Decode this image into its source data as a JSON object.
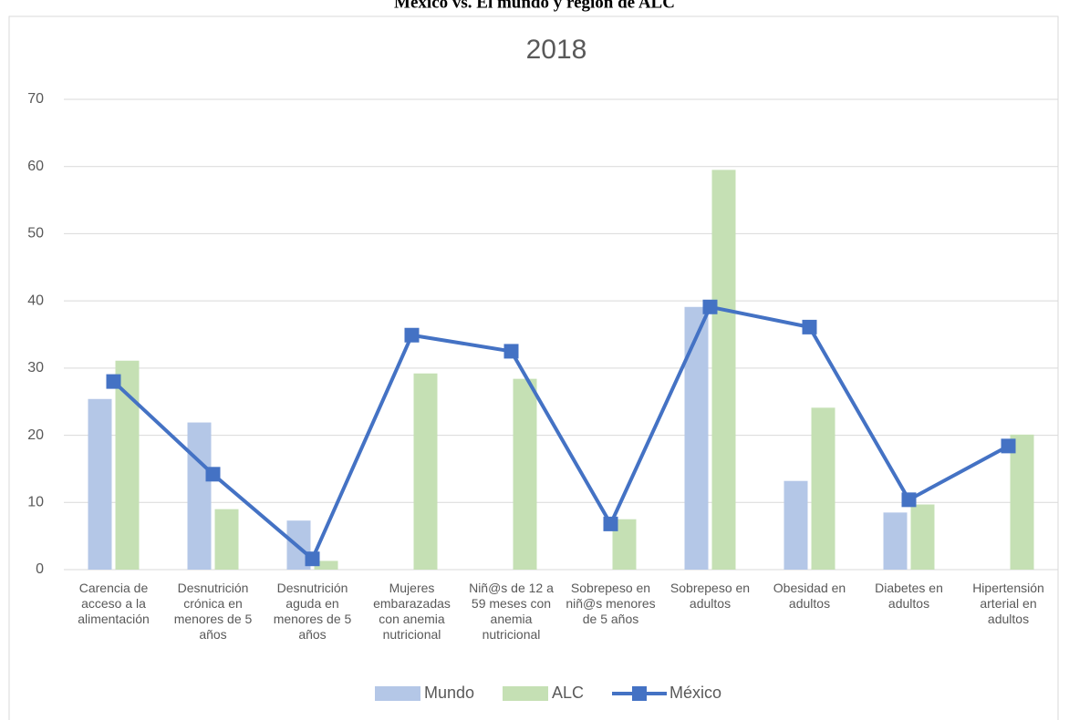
{
  "chart_data": {
    "type": "bar-line",
    "heading": "México vs. El mundo y región de ALC",
    "title": "2018",
    "categories": [
      "Carencia de acceso a la alimentación",
      "Desnutrición crónica en menores de 5 años",
      "Desnutrición aguda en menores de 5 años",
      "Mujeres embarazadas con anemia nutricional",
      "Niñ@s de 12 a 59 meses con anemia nutricional",
      "Sobrepeso en niñ@s menores de 5 años",
      "Sobrepeso en adultos",
      "Obesidad en adultos",
      "Diabetes en adultos",
      "Hipertensión arterial en adultos"
    ],
    "series": [
      {
        "name": "Mundo",
        "type": "bar",
        "color": "#b4c7e7",
        "values": [
          25.4,
          21.9,
          7.3,
          null,
          null,
          null,
          39.1,
          13.2,
          8.5,
          null
        ]
      },
      {
        "name": "ALC",
        "type": "bar",
        "color": "#c5e0b4",
        "values": [
          31.1,
          9,
          1.3,
          29.2,
          28.4,
          7.5,
          59.5,
          24.1,
          9.7,
          20.1
        ]
      },
      {
        "name": "México",
        "type": "line",
        "color": "#4472c4",
        "values": [
          28,
          14.2,
          1.6,
          34.9,
          32.5,
          6.8,
          39.1,
          36.1,
          10.4,
          18.4
        ]
      }
    ],
    "ylim": [
      0,
      70
    ],
    "yticks": [
      0,
      10,
      20,
      30,
      40,
      50,
      60,
      70
    ],
    "grid": true,
    "legend": "bottom"
  }
}
